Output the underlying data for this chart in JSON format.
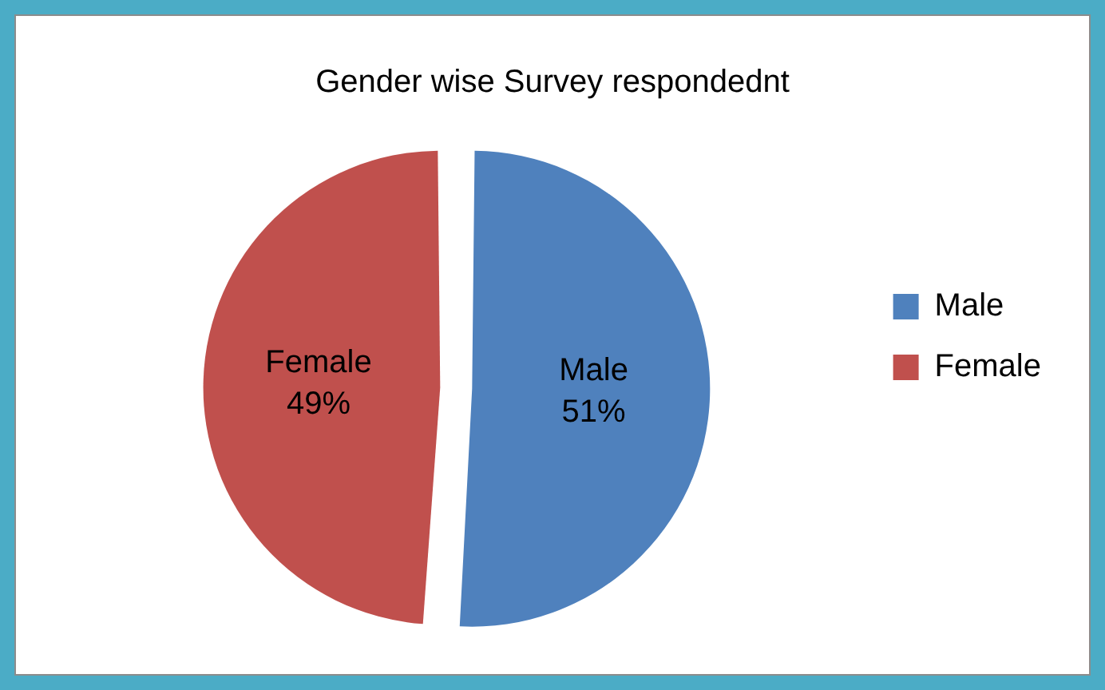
{
  "chart_data": {
    "type": "pie",
    "title": "Gender wise Survey respondednt",
    "categories": [
      "Male",
      "Female"
    ],
    "values": [
      51,
      49
    ],
    "colors": [
      "#4f81bd",
      "#c0504d"
    ],
    "value_labels": [
      "51%",
      "49%"
    ],
    "legend": "right"
  }
}
